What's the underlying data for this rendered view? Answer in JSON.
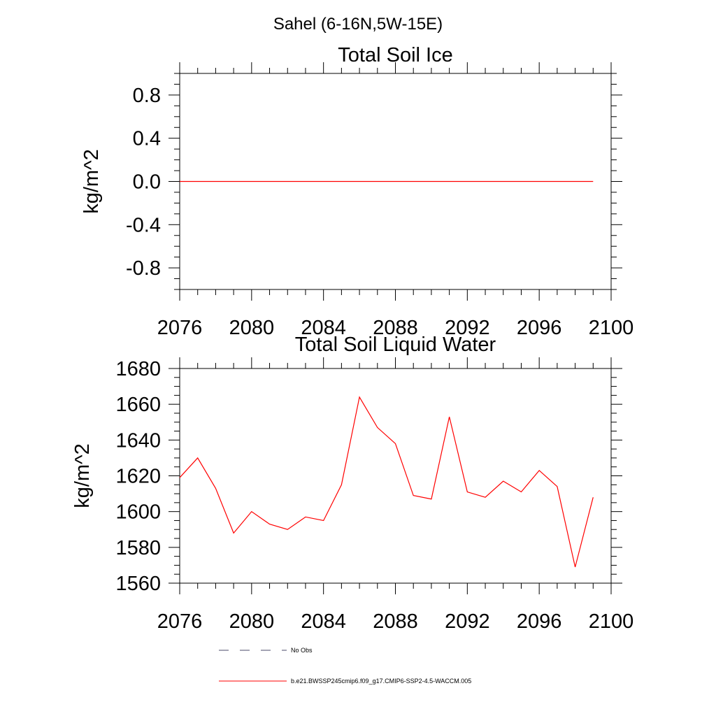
{
  "suptitle": "Sahel (6-16N,5W-15E)",
  "legend": {
    "entries": [
      {
        "label": "No Obs",
        "color": "#4a4a6a",
        "style": "dashed"
      },
      {
        "label": "b.e21.BWSSP245cmip6.f09_g17.CMIP6-SSP2-4.5-WACCM.005",
        "color": "#ff0000",
        "style": "solid"
      }
    ]
  },
  "chart_data": [
    {
      "type": "line",
      "title": "Total Soil Ice",
      "xlabel": "",
      "ylabel": "kg/m^2",
      "xlim": [
        2076,
        2100
      ],
      "ylim": [
        -1.0,
        1.0
      ],
      "xticks": [
        2076,
        2080,
        2084,
        2088,
        2092,
        2096,
        2100
      ],
      "xtick_labels": [
        "2076",
        "2080",
        "2084",
        "2088",
        "2092",
        "2096",
        "2100"
      ],
      "yticks": [
        -0.8,
        -0.4,
        0.0,
        0.4,
        0.8
      ],
      "ytick_labels": [
        "-0.8",
        "-0.4",
        "0.0",
        "0.4",
        "0.8"
      ],
      "series": [
        {
          "color": "#ff0000",
          "x": [
            2076,
            2077,
            2078,
            2079,
            2080,
            2081,
            2082,
            2083,
            2084,
            2085,
            2086,
            2087,
            2088,
            2089,
            2090,
            2091,
            2092,
            2093,
            2094,
            2095,
            2096,
            2097,
            2098,
            2099
          ],
          "values": [
            0,
            0,
            0,
            0,
            0,
            0,
            0,
            0,
            0,
            0,
            0,
            0,
            0,
            0,
            0,
            0,
            0,
            0,
            0,
            0,
            0,
            0,
            0,
            0
          ]
        }
      ],
      "grid": false
    },
    {
      "type": "line",
      "title": "Total Soil Liquid Water",
      "xlabel": "",
      "ylabel": "kg/m^2",
      "xlim": [
        2076,
        2100
      ],
      "ylim": [
        1560,
        1680
      ],
      "xticks": [
        2076,
        2080,
        2084,
        2088,
        2092,
        2096,
        2100
      ],
      "xtick_labels": [
        "2076",
        "2080",
        "2084",
        "2088",
        "2092",
        "2096",
        "2100"
      ],
      "yticks": [
        1560,
        1580,
        1600,
        1620,
        1640,
        1660,
        1680
      ],
      "ytick_labels": [
        "1560",
        "1580",
        "1600",
        "1620",
        "1640",
        "1660",
        "1680"
      ],
      "series": [
        {
          "color": "#ff0000",
          "x": [
            2076,
            2077,
            2078,
            2079,
            2080,
            2081,
            2082,
            2083,
            2084,
            2085,
            2086,
            2087,
            2088,
            2089,
            2090,
            2091,
            2092,
            2093,
            2094,
            2095,
            2096,
            2097,
            2098,
            2099
          ],
          "values": [
            1619,
            1630,
            1613,
            1588,
            1600,
            1593,
            1590,
            1597,
            1595,
            1615,
            1664,
            1647,
            1638,
            1609,
            1607,
            1653,
            1611,
            1608,
            1617,
            1611,
            1623,
            1614,
            1569,
            1608
          ]
        }
      ],
      "grid": false
    }
  ]
}
